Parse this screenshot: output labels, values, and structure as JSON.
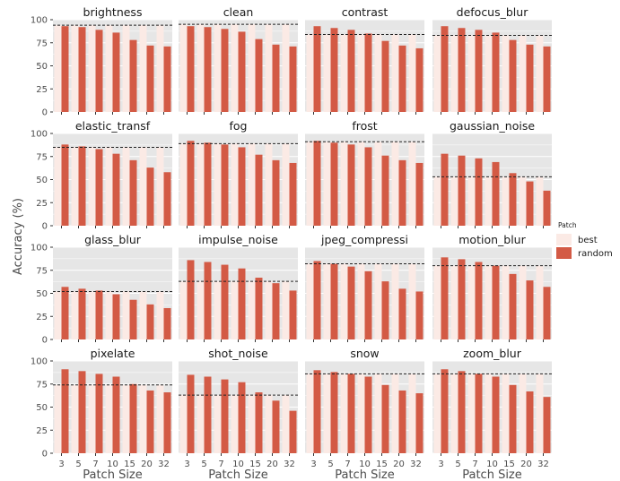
{
  "chart_data": {
    "type": "bar",
    "xlabel": "Patch Size",
    "ylabel": "Accuracy (%)",
    "categories": [
      "3",
      "5",
      "7",
      "10",
      "15",
      "20",
      "32"
    ],
    "ylim": [
      0,
      100
    ],
    "yticks": [
      "0",
      "25",
      "50",
      "75",
      "100"
    ],
    "grid": true,
    "legend": {
      "title": "Patch",
      "placement": "right",
      "entries": [
        {
          "name": "best",
          "color": "#fbeae5"
        },
        {
          "name": "random",
          "color": "#d35a45"
        }
      ]
    },
    "colors": {
      "panel_bg": "#e6e6e6",
      "best": "#fbeae5",
      "random": "#d35a45",
      "grid": "#ffffff",
      "reference_line": "#222222"
    },
    "panels": [
      {
        "title": "brightness",
        "best": [
          94,
          94,
          94,
          94,
          94,
          94,
          94
        ],
        "random": [
          93,
          92,
          89,
          86,
          78,
          72,
          71
        ],
        "reference": 94
      },
      {
        "title": "clean",
        "best": [
          95,
          95,
          95,
          95,
          95,
          95,
          95
        ],
        "random": [
          93,
          92,
          90,
          87,
          79,
          73,
          71
        ],
        "reference": 95
      },
      {
        "title": "contrast",
        "best": [
          84,
          84,
          84,
          84,
          84,
          84,
          84
        ],
        "random": [
          93,
          91,
          89,
          85,
          77,
          72,
          69
        ],
        "reference": 84
      },
      {
        "title": "defocus_blur",
        "best": [
          83,
          83,
          83,
          83,
          83,
          83,
          83
        ],
        "random": [
          93,
          91,
          89,
          86,
          78,
          73,
          71
        ],
        "reference": 83
      },
      {
        "title": "elastic_transf",
        "best": [
          85,
          85,
          85,
          85,
          85,
          85,
          85
        ],
        "random": [
          88,
          86,
          83,
          78,
          71,
          63,
          58
        ],
        "reference": 85
      },
      {
        "title": "fog",
        "best": [
          89,
          89,
          89,
          89,
          89,
          89,
          89
        ],
        "random": [
          92,
          90,
          88,
          85,
          77,
          71,
          68
        ],
        "reference": 89
      },
      {
        "title": "frost",
        "best": [
          91,
          91,
          91,
          91,
          91,
          91,
          91
        ],
        "random": [
          92,
          90,
          88,
          85,
          76,
          71,
          68
        ],
        "reference": 91
      },
      {
        "title": "gaussian_noise",
        "best": [
          53,
          53,
          53,
          53,
          53,
          53,
          53
        ],
        "random": [
          78,
          76,
          73,
          69,
          57,
          48,
          38
        ],
        "reference": 53
      },
      {
        "title": "glass_blur",
        "best": [
          52,
          52,
          52,
          52,
          52,
          52,
          52
        ],
        "random": [
          57,
          55,
          53,
          49,
          43,
          38,
          34
        ],
        "reference": 52
      },
      {
        "title": "impulse_noise",
        "best": [
          63,
          63,
          63,
          63,
          63,
          63,
          63
        ],
        "random": [
          86,
          84,
          81,
          77,
          67,
          61,
          53
        ],
        "reference": 63
      },
      {
        "title": "jpeg_compressi",
        "best": [
          82,
          82,
          82,
          82,
          82,
          82,
          82
        ],
        "random": [
          85,
          82,
          79,
          74,
          63,
          55,
          52
        ],
        "reference": 82
      },
      {
        "title": "motion_blur",
        "best": [
          80,
          80,
          80,
          80,
          80,
          80,
          80
        ],
        "random": [
          89,
          87,
          84,
          80,
          71,
          64,
          57
        ],
        "reference": 80
      },
      {
        "title": "pixelate",
        "best": [
          74,
          74,
          74,
          74,
          74,
          74,
          74
        ],
        "random": [
          91,
          89,
          86,
          83,
          75,
          68,
          66
        ],
        "reference": 74
      },
      {
        "title": "shot_noise",
        "best": [
          63,
          63,
          63,
          63,
          63,
          63,
          63
        ],
        "random": [
          85,
          83,
          80,
          77,
          66,
          57,
          46
        ],
        "reference": 63
      },
      {
        "title": "snow",
        "best": [
          86,
          86,
          86,
          86,
          86,
          86,
          86
        ],
        "random": [
          90,
          88,
          86,
          83,
          74,
          68,
          65
        ],
        "reference": 86
      },
      {
        "title": "zoom_blur",
        "best": [
          86,
          86,
          86,
          86,
          86,
          86,
          86
        ],
        "random": [
          91,
          89,
          86,
          83,
          74,
          67,
          61
        ],
        "reference": 86
      }
    ]
  }
}
